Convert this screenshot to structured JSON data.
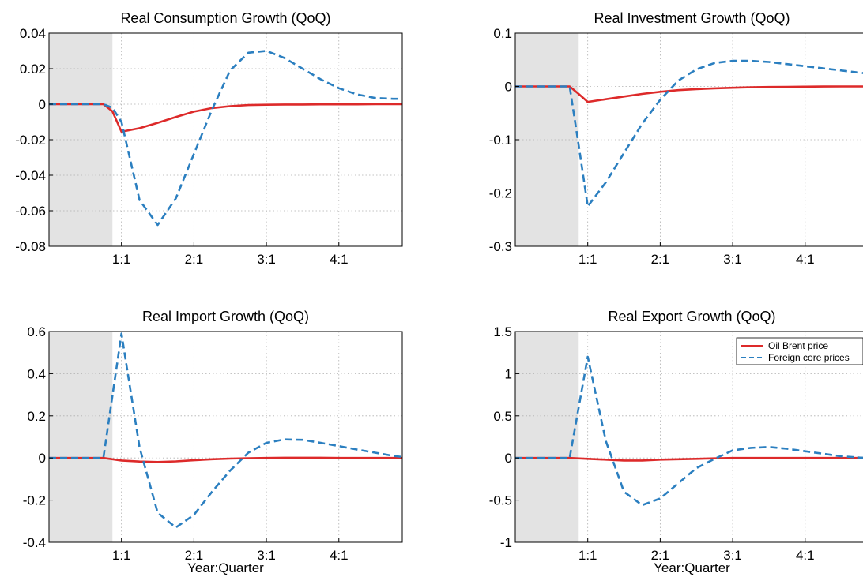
{
  "figure": {
    "background": "#ffffff",
    "shade_color": "#e3e3e3"
  },
  "series_styles": {
    "Oil Brent price": {
      "color": "#dd2a2a",
      "dash": "solid"
    },
    "Foreign core prices": {
      "color": "#2b7fc0",
      "dash": "dashed"
    }
  },
  "chart_data": [
    {
      "type": "line",
      "title": "Real Consumption Growth (QoQ)",
      "xlabel": "",
      "xlim": [
        -1,
        18.5
      ],
      "ylim": [
        -0.08,
        0.04
      ],
      "yticks": [
        -0.08,
        -0.06,
        -0.04,
        -0.02,
        0,
        0.02,
        0.04
      ],
      "ytick_labels": [
        "-0.08",
        "-0.06",
        "-0.04",
        "-0.02",
        "0",
        "0.02",
        "0.04"
      ],
      "xticks": [
        3,
        7,
        11,
        15
      ],
      "xtick_labels": [
        "1:1",
        "2:1",
        "3:1",
        "4:1"
      ],
      "shaded_x": [
        -1,
        2.5
      ],
      "grid": true,
      "legend": false,
      "x": [
        -1,
        0,
        1,
        2,
        2.5,
        3,
        4,
        5,
        6,
        7,
        8,
        9,
        10,
        11,
        12,
        13,
        14,
        15,
        16,
        17,
        18,
        18.5
      ],
      "series": [
        {
          "name": "Oil Brent price",
          "values": [
            0,
            0,
            0,
            0,
            -0.004,
            -0.0155,
            -0.0135,
            -0.0105,
            -0.0072,
            -0.0042,
            -0.0022,
            -0.0011,
            -0.0005,
            -0.0003,
            -0.0002,
            -0.0002,
            -0.0001,
            -0.0001,
            -0.0001,
            0,
            0,
            0
          ]
        },
        {
          "name": "Foreign core prices",
          "values": [
            0,
            0,
            0,
            0,
            -0.002,
            -0.01,
            -0.054,
            -0.068,
            -0.053,
            -0.028,
            -0.003,
            0.019,
            0.029,
            0.03,
            0.026,
            0.02,
            0.014,
            0.009,
            0.0055,
            0.0035,
            0.003,
            0.003
          ]
        }
      ]
    },
    {
      "type": "line",
      "title": "Real Investment Growth (QoQ)",
      "xlabel": "",
      "xlim": [
        -1,
        18.5
      ],
      "ylim": [
        -0.3,
        0.1
      ],
      "yticks": [
        -0.3,
        -0.2,
        -0.1,
        0,
        0.1
      ],
      "ytick_labels": [
        "-0.3",
        "-0.2",
        "-0.1",
        "0",
        "0.1"
      ],
      "xticks": [
        3,
        7,
        11,
        15
      ],
      "xtick_labels": [
        "1:1",
        "2:1",
        "3:1",
        "4:1"
      ],
      "shaded_x": [
        -1,
        2.5
      ],
      "grid": true,
      "legend": false,
      "x": [
        -1,
        0,
        1,
        2,
        2.5,
        3,
        4,
        5,
        6,
        7,
        8,
        9,
        10,
        11,
        12,
        13,
        14,
        15,
        16,
        17,
        18,
        18.5
      ],
      "series": [
        {
          "name": "Oil Brent price",
          "values": [
            0,
            0,
            0,
            0,
            -0.014,
            -0.029,
            -0.024,
            -0.019,
            -0.014,
            -0.01,
            -0.007,
            -0.005,
            -0.0035,
            -0.0025,
            -0.0017,
            -0.0011,
            -0.0007,
            -0.0004,
            -0.0002,
            0,
            0,
            0
          ]
        },
        {
          "name": "Foreign core prices",
          "values": [
            0,
            0,
            0,
            0,
            -0.11,
            -0.225,
            -0.18,
            -0.125,
            -0.07,
            -0.025,
            0.011,
            0.032,
            0.044,
            0.048,
            0.048,
            0.046,
            0.042,
            0.038,
            0.034,
            0.03,
            0.026,
            0.024
          ]
        }
      ]
    },
    {
      "type": "line",
      "title": "Real Import Growth (QoQ)",
      "xlabel": "Year:Quarter",
      "xlim": [
        -1,
        18.5
      ],
      "ylim": [
        -0.4,
        0.6
      ],
      "yticks": [
        -0.4,
        -0.2,
        0,
        0.2,
        0.4,
        0.6
      ],
      "ytick_labels": [
        "-0.4",
        "-0.2",
        "0",
        "0.2",
        "0.4",
        "0.6"
      ],
      "xticks": [
        3,
        7,
        11,
        15
      ],
      "xtick_labels": [
        "1:1",
        "2:1",
        "3:1",
        "4:1"
      ],
      "shaded_x": [
        -1,
        2.5
      ],
      "grid": true,
      "legend": false,
      "x": [
        -1,
        0,
        1,
        2,
        3,
        4,
        5,
        6,
        7,
        8,
        9,
        10,
        11,
        12,
        13,
        14,
        15,
        16,
        17,
        18,
        18.5
      ],
      "series": [
        {
          "name": "Oil Brent price",
          "values": [
            0,
            0,
            0,
            0,
            -0.012,
            -0.017,
            -0.019,
            -0.016,
            -0.011,
            -0.006,
            -0.003,
            -0.001,
            0,
            0.001,
            0.001,
            0.001,
            0,
            0,
            0,
            0,
            0
          ]
        },
        {
          "name": "Foreign core prices",
          "values": [
            0,
            0,
            0,
            0,
            0.59,
            0.05,
            -0.26,
            -0.33,
            -0.27,
            -0.16,
            -0.06,
            0.025,
            0.072,
            0.088,
            0.086,
            0.072,
            0.056,
            0.04,
            0.025,
            0.01,
            0.005
          ]
        }
      ]
    },
    {
      "type": "line",
      "title": "Real Export Growth (QoQ)",
      "xlabel": "Year:Quarter",
      "xlim": [
        -1,
        18.5
      ],
      "ylim": [
        -1,
        1.5
      ],
      "yticks": [
        -1,
        -0.5,
        0,
        0.5,
        1,
        1.5
      ],
      "ytick_labels": [
        "-1",
        "-0.5",
        "0",
        "0.5",
        "1",
        "1.5"
      ],
      "xticks": [
        3,
        7,
        11,
        15
      ],
      "xtick_labels": [
        "1:1",
        "2:1",
        "3:1",
        "4:1"
      ],
      "shaded_x": [
        -1,
        2.5
      ],
      "grid": true,
      "legend": true,
      "legend_position": "top-right",
      "x": [
        -1,
        0,
        1,
        2,
        3,
        4,
        5,
        6,
        7,
        8,
        9,
        10,
        11,
        12,
        13,
        14,
        15,
        16,
        17,
        18,
        18.5
      ],
      "series": [
        {
          "name": "Oil Brent price",
          "values": [
            0,
            0,
            0,
            0,
            -0.01,
            -0.02,
            -0.03,
            -0.03,
            -0.02,
            -0.015,
            -0.01,
            -0.005,
            0,
            0,
            0,
            0,
            0,
            0,
            0,
            0,
            0
          ]
        },
        {
          "name": "Foreign core prices",
          "values": [
            0,
            0,
            0,
            0,
            1.2,
            0.2,
            -0.4,
            -0.56,
            -0.48,
            -0.3,
            -0.12,
            -0.01,
            0.09,
            0.12,
            0.13,
            0.11,
            0.08,
            0.05,
            0.02,
            0.005,
            0
          ]
        }
      ]
    }
  ]
}
